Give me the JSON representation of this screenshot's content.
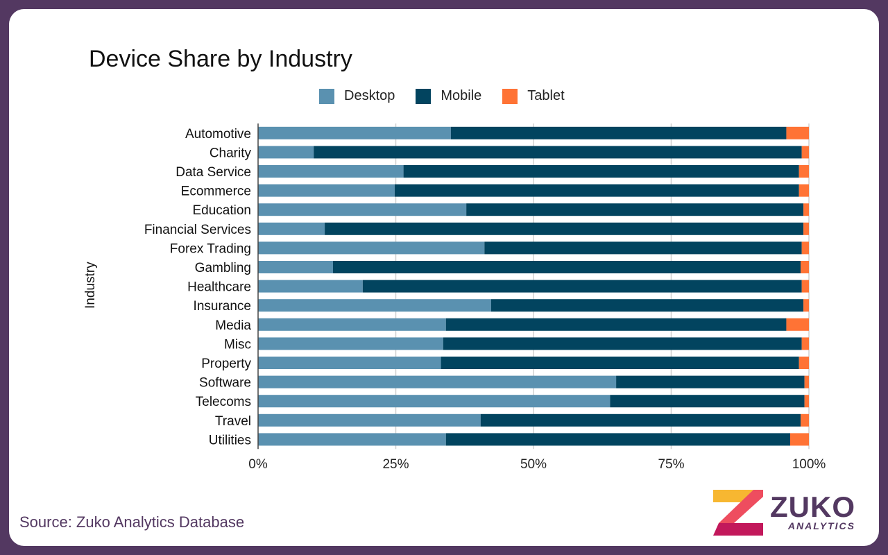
{
  "chart_data": {
    "type": "bar",
    "orientation": "horizontal",
    "stacked": "percent",
    "title": "Device Share by Industry",
    "ylabel": "Industry",
    "xlabel": "",
    "xlim": [
      0,
      100
    ],
    "x_ticks": [
      "0%",
      "25%",
      "50%",
      "75%",
      "100%"
    ],
    "grid": true,
    "legend_position": "top",
    "categories": [
      "Automotive",
      "Charity",
      "Data Service",
      "Ecommerce",
      "Education",
      "Financial Services",
      "Forex Trading",
      "Gambling",
      "Healthcare",
      "Insurance",
      "Media",
      "Misc",
      "Property",
      "Software",
      "Telecoms",
      "Travel",
      "Utilities"
    ],
    "series": [
      {
        "name": "Desktop",
        "color": "#5a91b0",
        "values": [
          35.0,
          10.1,
          26.4,
          24.8,
          37.8,
          12.1,
          41.1,
          13.6,
          19.0,
          42.3,
          34.1,
          33.6,
          33.2,
          65.0,
          63.9,
          40.4,
          34.1
        ]
      },
      {
        "name": "Mobile",
        "color": "#02445f",
        "values": [
          60.9,
          88.6,
          71.8,
          73.4,
          61.2,
          86.9,
          57.6,
          84.9,
          79.7,
          56.7,
          61.8,
          65.1,
          65.0,
          34.2,
          35.3,
          58.1,
          62.5
        ]
      },
      {
        "name": "Tablet",
        "color": "#ff7335",
        "values": [
          4.1,
          1.3,
          1.8,
          1.8,
          1.0,
          1.0,
          1.3,
          1.5,
          1.3,
          1.0,
          4.1,
          1.3,
          1.8,
          0.8,
          0.8,
          1.5,
          3.4
        ]
      }
    ]
  },
  "footer": {
    "source": "Source: Zuko Analytics Database",
    "logo_word": "ZUKO",
    "logo_sub": "ANALYTICS"
  }
}
